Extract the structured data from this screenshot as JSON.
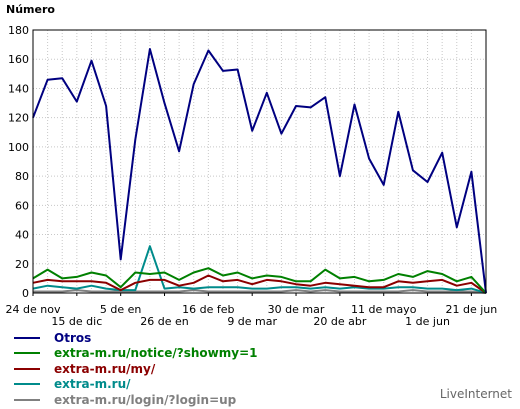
{
  "chart_data": {
    "type": "line",
    "ylabel": "Número",
    "ylim": [
      0,
      180
    ],
    "yticks": [
      0,
      20,
      40,
      60,
      80,
      100,
      120,
      140,
      160,
      180
    ],
    "grid": true,
    "num_points": 32,
    "xtick_labels": [
      {
        "label": "24 de nov",
        "index": 0,
        "row": 1
      },
      {
        "label": "15 de dic",
        "index": 3,
        "row": 2
      },
      {
        "label": "5 de en",
        "index": 6,
        "row": 1
      },
      {
        "label": "26 de en",
        "index": 9,
        "row": 2
      },
      {
        "label": "16 de feb",
        "index": 12,
        "row": 1
      },
      {
        "label": "9 de mar",
        "index": 15,
        "row": 2
      },
      {
        "label": "30 de mar",
        "index": 18,
        "row": 1
      },
      {
        "label": "20 de abr",
        "index": 21,
        "row": 2
      },
      {
        "label": "11 de mayo",
        "index": 24,
        "row": 1
      },
      {
        "label": "1 de jun",
        "index": 27,
        "row": 2
      },
      {
        "label": "21 de jun",
        "index": 30,
        "row": 1
      }
    ],
    "series": [
      {
        "name": "Otros",
        "color": "#000080",
        "values": [
          120,
          146,
          147,
          131,
          159,
          128,
          23,
          105,
          167,
          130,
          97,
          143,
          166,
          152,
          153,
          111,
          137,
          109,
          128,
          127,
          134,
          80,
          129,
          92,
          74,
          124,
          84,
          76,
          96,
          45,
          83,
          0
        ]
      },
      {
        "name": "extra-m.ru/notice/?showmy=1",
        "color": "#008000",
        "values": [
          10,
          16,
          10,
          11,
          14,
          12,
          4,
          14,
          13,
          14,
          9,
          14,
          17,
          12,
          14,
          10,
          12,
          11,
          8,
          8,
          16,
          10,
          11,
          8,
          9,
          13,
          11,
          15,
          13,
          8,
          11,
          0
        ]
      },
      {
        "name": "extra-m.ru/my/",
        "color": "#8b0000",
        "values": [
          7,
          9,
          8,
          8,
          8,
          7,
          2,
          7,
          9,
          9,
          5,
          7,
          12,
          8,
          9,
          6,
          9,
          8,
          6,
          5,
          7,
          6,
          5,
          4,
          4,
          8,
          7,
          8,
          9,
          5,
          7,
          0
        ]
      },
      {
        "name": "extra-m.ru/",
        "color": "#008b8b",
        "values": [
          3,
          5,
          4,
          3,
          5,
          3,
          2,
          2,
          32,
          3,
          4,
          3,
          4,
          4,
          4,
          3,
          3,
          4,
          4,
          3,
          4,
          3,
          4,
          3,
          3,
          4,
          4,
          3,
          3,
          2,
          3,
          0
        ]
      },
      {
        "name": "extra-m.ru/login/?login=up",
        "color": "#808080",
        "values": [
          1,
          1,
          1,
          2,
          1,
          1,
          1,
          1,
          1,
          1,
          1,
          2,
          1,
          1,
          1,
          1,
          1,
          1,
          2,
          1,
          2,
          1,
          1,
          1,
          1,
          1,
          2,
          1,
          1,
          1,
          1,
          0
        ]
      }
    ]
  },
  "legend": {
    "items": [
      {
        "label": "Otros",
        "color": "#000080"
      },
      {
        "label": "extra-m.ru/notice/?showmy=1",
        "color": "#008000"
      },
      {
        "label": "extra-m.ru/my/",
        "color": "#8b0000"
      },
      {
        "label": "extra-m.ru/",
        "color": "#008b8b"
      },
      {
        "label": "extra-m.ru/login/?login=up",
        "color": "#808080"
      }
    ]
  },
  "brand": {
    "text": "LiveInternet"
  }
}
